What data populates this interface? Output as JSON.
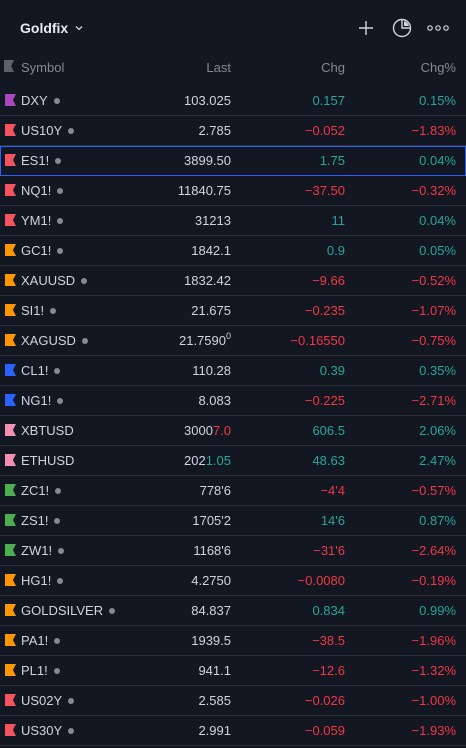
{
  "header": {
    "title": "Goldfix"
  },
  "columns": {
    "symbol": "Symbol",
    "last": "Last",
    "chg": "Chg",
    "pct": "Chg%"
  },
  "colors": {
    "up": "#26a69a",
    "down": "#f23645",
    "accent": "#2962ff",
    "background": "#131722"
  },
  "rows": [
    {
      "symbol": "DXY",
      "last_a": "103.025",
      "last_b": "",
      "last_sup": "",
      "last_b_dir": "",
      "chg": "0.157",
      "pct": "0.15%",
      "dir": "up",
      "flag": "#ab47bc",
      "dot": true
    },
    {
      "symbol": "US10Y",
      "last_a": "2.785",
      "last_b": "",
      "last_sup": "",
      "last_b_dir": "",
      "chg": "−0.052",
      "pct": "−1.83%",
      "dir": "down",
      "flag": "#f7525f",
      "dot": true
    },
    {
      "symbol": "ES1!",
      "last_a": "3899.50",
      "last_b": "",
      "last_sup": "",
      "last_b_dir": "",
      "chg": "1.75",
      "pct": "0.04%",
      "dir": "up",
      "flag": "#f7525f",
      "dot": true
    },
    {
      "symbol": "NQ1!",
      "last_a": "11840.75",
      "last_b": "",
      "last_sup": "",
      "last_b_dir": "",
      "chg": "−37.50",
      "pct": "−0.32%",
      "dir": "down",
      "flag": "#f7525f",
      "dot": true
    },
    {
      "symbol": "YM1!",
      "last_a": "31213",
      "last_b": "",
      "last_sup": "",
      "last_b_dir": "",
      "chg": "11",
      "pct": "0.04%",
      "dir": "up",
      "flag": "#f7525f",
      "dot": true
    },
    {
      "symbol": "GC1!",
      "last_a": "1842.1",
      "last_b": "",
      "last_sup": "",
      "last_b_dir": "",
      "chg": "0.9",
      "pct": "0.05%",
      "dir": "up",
      "flag": "#ff9800",
      "dot": true
    },
    {
      "symbol": "XAUUSD",
      "last_a": "1832.42",
      "last_b": "",
      "last_sup": "",
      "last_b_dir": "",
      "chg": "−9.66",
      "pct": "−0.52%",
      "dir": "down",
      "flag": "#ff9800",
      "dot": true
    },
    {
      "symbol": "SI1!",
      "last_a": "21.675",
      "last_b": "",
      "last_sup": "",
      "last_b_dir": "",
      "chg": "−0.235",
      "pct": "−1.07%",
      "dir": "down",
      "flag": "#ff9800",
      "dot": true
    },
    {
      "symbol": "XAGUSD",
      "last_a": "21.7590",
      "last_b": "",
      "last_sup": "0",
      "last_b_dir": "",
      "chg": "−0.16550",
      "pct": "−0.75%",
      "dir": "down",
      "flag": "#ff9800",
      "dot": true
    },
    {
      "symbol": "CL1!",
      "last_a": "110.28",
      "last_b": "",
      "last_sup": "",
      "last_b_dir": "",
      "chg": "0.39",
      "pct": "0.35%",
      "dir": "up",
      "flag": "#2962ff",
      "dot": true
    },
    {
      "symbol": "NG1!",
      "last_a": "8.083",
      "last_b": "",
      "last_sup": "",
      "last_b_dir": "",
      "chg": "−0.225",
      "pct": "−2.71%",
      "dir": "down",
      "flag": "#2962ff",
      "dot": true
    },
    {
      "symbol": "XBTUSD",
      "last_a": "3000",
      "last_b": "7.0",
      "last_sup": "",
      "last_b_dir": "down",
      "chg": "606.5",
      "pct": "2.06%",
      "dir": "up",
      "flag": "#f48fb1",
      "dot": false
    },
    {
      "symbol": "ETHUSD",
      "last_a": "202",
      "last_b": "1.05",
      "last_sup": "",
      "last_b_dir": "up",
      "chg": "48.63",
      "pct": "2.47%",
      "dir": "up",
      "flag": "#f48fb1",
      "dot": false
    },
    {
      "symbol": "ZC1!",
      "last_a": "778'6",
      "last_b": "",
      "last_sup": "",
      "last_b_dir": "",
      "chg": "−4'4",
      "pct": "−0.57%",
      "dir": "down",
      "flag": "#4caf50",
      "dot": true
    },
    {
      "symbol": "ZS1!",
      "last_a": "1705'2",
      "last_b": "",
      "last_sup": "",
      "last_b_dir": "",
      "chg": "14'6",
      "pct": "0.87%",
      "dir": "up",
      "flag": "#4caf50",
      "dot": true
    },
    {
      "symbol": "ZW1!",
      "last_a": "1168'6",
      "last_b": "",
      "last_sup": "",
      "last_b_dir": "",
      "chg": "−31'6",
      "pct": "−2.64%",
      "dir": "down",
      "flag": "#4caf50",
      "dot": true
    },
    {
      "symbol": "HG1!",
      "last_a": "4.2750",
      "last_b": "",
      "last_sup": "",
      "last_b_dir": "",
      "chg": "−0.0080",
      "pct": "−0.19%",
      "dir": "down",
      "flag": "#ff9800",
      "dot": true
    },
    {
      "symbol": "GOLDSILVER",
      "last_a": "84.837",
      "last_b": "",
      "last_sup": "",
      "last_b_dir": "",
      "chg": "0.834",
      "pct": "0.99%",
      "dir": "up",
      "flag": "#ff9800",
      "dot": true
    },
    {
      "symbol": "PA1!",
      "last_a": "1939.5",
      "last_b": "",
      "last_sup": "",
      "last_b_dir": "",
      "chg": "−38.5",
      "pct": "−1.96%",
      "dir": "down",
      "flag": "#ff9800",
      "dot": true
    },
    {
      "symbol": "PL1!",
      "last_a": "941.1",
      "last_b": "",
      "last_sup": "",
      "last_b_dir": "",
      "chg": "−12.6",
      "pct": "−1.32%",
      "dir": "down",
      "flag": "#ff9800",
      "dot": true
    },
    {
      "symbol": "US02Y",
      "last_a": "2.585",
      "last_b": "",
      "last_sup": "",
      "last_b_dir": "",
      "chg": "−0.026",
      "pct": "−1.00%",
      "dir": "down",
      "flag": "#f7525f",
      "dot": true
    },
    {
      "symbol": "US30Y",
      "last_a": "2.991",
      "last_b": "",
      "last_sup": "",
      "last_b_dir": "",
      "chg": "−0.059",
      "pct": "−1.93%",
      "dir": "down",
      "flag": "#f7525f",
      "dot": true
    }
  ],
  "selected_symbol": "ES1!"
}
